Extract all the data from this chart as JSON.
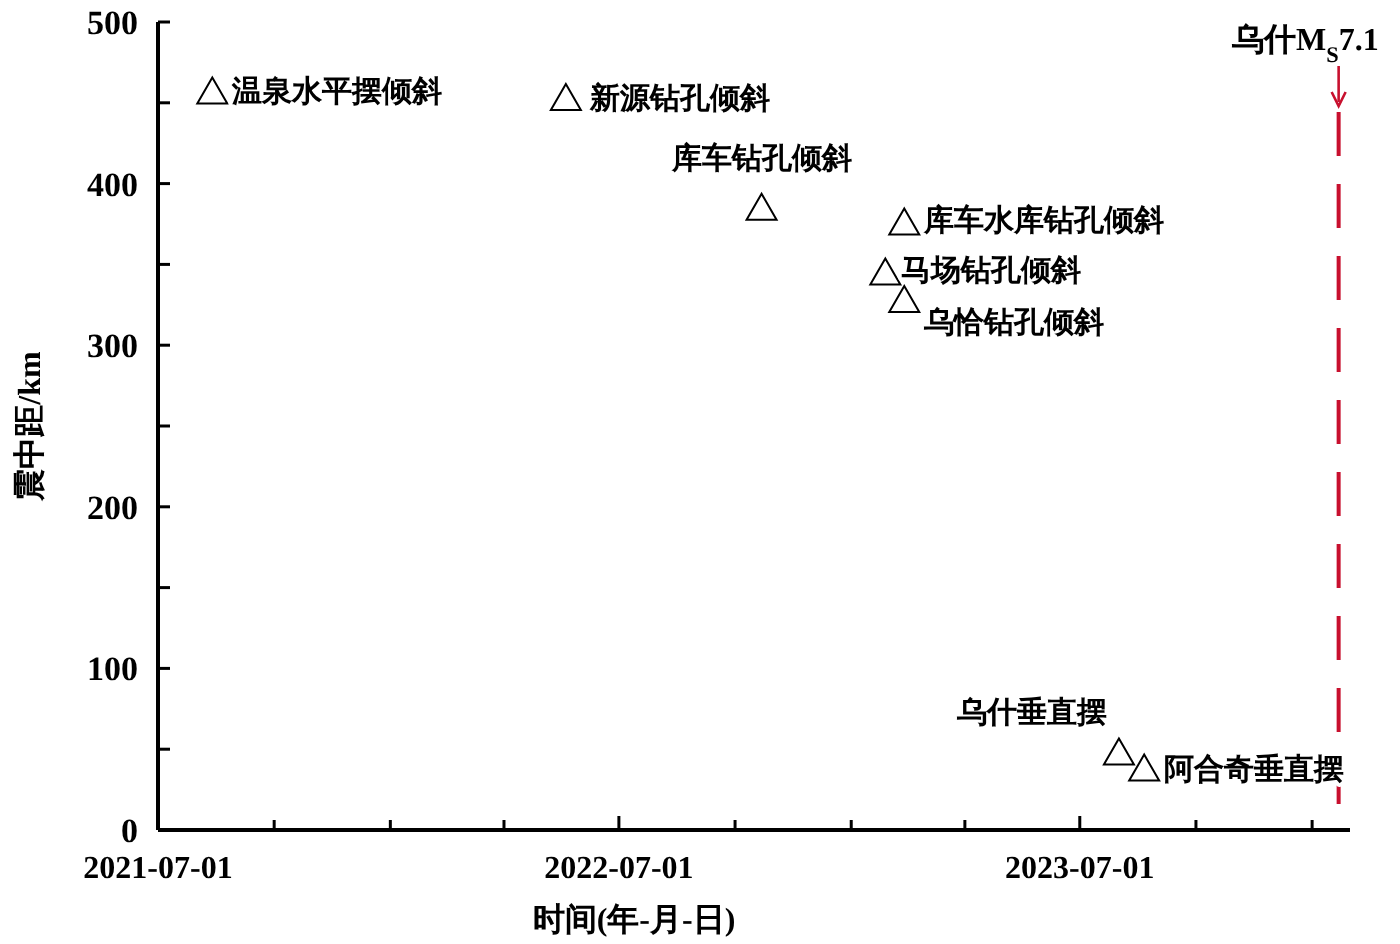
{
  "chart_data": {
    "type": "scatter",
    "xlabel": "时间(年-月-日)",
    "ylabel": "震中距/km",
    "series": [
      {
        "color": "#000000",
        "x": [
          "2021-08-13",
          "2022-05-20",
          "2022-10-22",
          "2023-02-12",
          "2023-01-28",
          "2023-02-12",
          "2023-08-01",
          "2023-08-21"
        ],
        "values": [
          457,
          453,
          385,
          376,
          345,
          328,
          48,
          38
        ]
      }
    ],
    "annotations": [
      {
        "text": "温泉水平摆倾斜",
        "x": "2021-08-13",
        "y": 457
      },
      {
        "text": "新源钻孔倾斜",
        "x": "2022-05-20",
        "y": 453
      },
      {
        "text": "库车钻孔倾斜",
        "x": "2022-10-22",
        "y": 385
      },
      {
        "text": "库车水库钻孔倾斜",
        "x": "2023-02-12",
        "y": 376
      },
      {
        "text": "马场钻孔倾斜",
        "x": "2023-01-28",
        "y": 345
      },
      {
        "text": "乌恰钻孔倾斜",
        "x": "2023-02-12",
        "y": 328
      },
      {
        "text": "乌什垂直摆",
        "x": "2023-08-01",
        "y": 48
      },
      {
        "text": "阿合奇垂直摆",
        "x": "2023-08-21",
        "y": 38
      }
    ],
    "xlim": [
      "2021-07-01",
      "2024-01-31"
    ],
    "xticks": [
      {
        "value": "2021-07-01",
        "label": "2021-07-01"
      },
      {
        "value": "2021-10-01",
        "label": null
      },
      {
        "value": "2022-01-01",
        "label": null
      },
      {
        "value": "2022-04-01",
        "label": null
      },
      {
        "value": "2022-07-01",
        "label": "2022-07-01"
      },
      {
        "value": "2022-10-01",
        "label": null
      },
      {
        "value": "2023-01-01",
        "label": null
      },
      {
        "value": "2023-04-01",
        "label": null
      },
      {
        "value": "2023-07-01",
        "label": "2023-07-01"
      },
      {
        "value": "2023-10-01",
        "label": null
      },
      {
        "value": "2024-01-01",
        "label": null
      }
    ],
    "ylim": [
      0,
      500
    ],
    "yticks": [
      0,
      {
        "value": 50,
        "label": null
      },
      100,
      {
        "value": 150,
        "label": null
      },
      200,
      {
        "value": 250,
        "label": null
      },
      300,
      {
        "value": 350,
        "label": null
      },
      400,
      {
        "value": 450,
        "label": null
      },
      500
    ],
    "ref_lines": [
      {
        "axis": "x",
        "value": "2024-01-22",
        "label": "乌什M$_{S}$7.1",
        "color": "#c8102e",
        "line_style": "dashed"
      }
    ],
    "marker": "triangle",
    "grid": false
  }
}
